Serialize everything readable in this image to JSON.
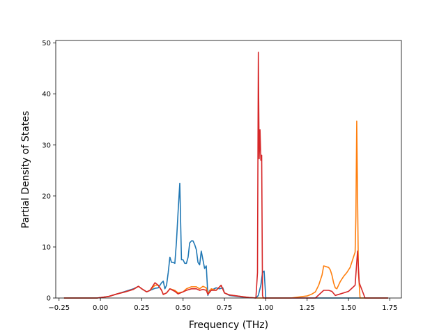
{
  "chart_data": {
    "type": "line",
    "title": "",
    "xlabel": "Frequency (THz)",
    "ylabel": "Partial Density of States",
    "xlim": [
      -0.27,
      1.82
    ],
    "ylim": [
      0,
      50.5
    ],
    "grid": false,
    "x_ticks": [
      -0.25,
      0.0,
      0.25,
      0.5,
      0.75,
      1.0,
      1.25,
      1.5,
      1.75
    ],
    "x_tick_labels": [
      "−0.25",
      "0.00",
      "0.25",
      "0.50",
      "0.75",
      "1.00",
      "1.25",
      "1.50",
      "1.75"
    ],
    "y_ticks": [
      0,
      10,
      20,
      30,
      40,
      50
    ],
    "y_tick_labels": [
      "0",
      "10",
      "20",
      "30",
      "40",
      "50"
    ],
    "series": [
      {
        "color": "#1f77b4",
        "x": [
          -0.22,
          -0.02,
          0.05,
          0.1,
          0.15,
          0.2,
          0.23,
          0.25,
          0.28,
          0.3,
          0.33,
          0.35,
          0.37,
          0.38,
          0.39,
          0.4,
          0.41,
          0.42,
          0.43,
          0.44,
          0.45,
          0.46,
          0.47,
          0.48,
          0.49,
          0.5,
          0.51,
          0.52,
          0.53,
          0.54,
          0.55,
          0.56,
          0.57,
          0.58,
          0.59,
          0.6,
          0.61,
          0.62,
          0.63,
          0.64,
          0.65,
          0.66,
          0.67,
          0.7,
          0.72,
          0.74,
          0.75,
          0.78,
          0.85,
          0.9,
          0.94,
          0.955,
          0.97,
          0.98,
          0.99,
          1.0,
          1.1,
          1.3,
          1.45,
          1.55,
          1.57,
          1.74
        ],
        "y": [
          0,
          0,
          0.3,
          0.8,
          1.3,
          1.8,
          2.3,
          1.8,
          1.2,
          1.5,
          1.9,
          2.0,
          3.0,
          3.3,
          1.8,
          2.5,
          5.0,
          8.0,
          7.0,
          7.0,
          6.8,
          11.0,
          17.0,
          22.5,
          7.5,
          7.5,
          6.8,
          6.8,
          8.0,
          10.8,
          11.2,
          11.2,
          10.5,
          9.5,
          7.0,
          6.5,
          9.2,
          7.5,
          5.8,
          6.3,
          0.5,
          1.5,
          1.5,
          2.0,
          1.8,
          2.0,
          1.0,
          0.5,
          0.2,
          0.1,
          0,
          0.5,
          2.5,
          5.0,
          5.3,
          0,
          0,
          0,
          0,
          0,
          0,
          0
        ]
      },
      {
        "color": "#ff7f0e",
        "x": [
          -0.22,
          -0.02,
          0.05,
          0.1,
          0.15,
          0.2,
          0.23,
          0.25,
          0.28,
          0.3,
          0.33,
          0.35,
          0.37,
          0.38,
          0.4,
          0.42,
          0.45,
          0.47,
          0.5,
          0.52,
          0.55,
          0.58,
          0.6,
          0.62,
          0.64,
          0.65,
          0.67,
          0.7,
          0.73,
          0.75,
          0.78,
          0.85,
          0.9,
          0.95,
          0.99,
          1.15,
          1.2,
          1.25,
          1.28,
          1.3,
          1.32,
          1.34,
          1.35,
          1.36,
          1.38,
          1.39,
          1.4,
          1.41,
          1.42,
          1.43,
          1.44,
          1.45,
          1.47,
          1.49,
          1.51,
          1.52,
          1.53,
          1.54,
          1.545,
          1.55,
          1.555,
          1.56,
          1.57,
          1.62,
          1.74
        ],
        "y": [
          0,
          0,
          0.3,
          0.8,
          1.2,
          1.7,
          2.3,
          1.8,
          1.2,
          1.5,
          2.5,
          2.5,
          1.5,
          0.7,
          1.0,
          1.8,
          1.5,
          1.0,
          1.2,
          1.8,
          2.2,
          2.2,
          1.8,
          2.3,
          2.0,
          0.8,
          1.8,
          1.5,
          2.5,
          1.0,
          0.6,
          0.3,
          0.1,
          0,
          0,
          0,
          0.2,
          0.4,
          0.8,
          1.2,
          2.5,
          4.5,
          6.3,
          6.2,
          6.0,
          5.5,
          4.5,
          3.0,
          2.0,
          1.8,
          2.5,
          3.2,
          4.2,
          5.0,
          6.0,
          7.0,
          8.0,
          9.0,
          16.0,
          34.7,
          20.0,
          5.0,
          0,
          0,
          0
        ]
      },
      {
        "color": "#d62728",
        "x": [
          -0.22,
          -0.02,
          0.05,
          0.1,
          0.15,
          0.2,
          0.23,
          0.25,
          0.28,
          0.3,
          0.33,
          0.35,
          0.37,
          0.38,
          0.4,
          0.42,
          0.45,
          0.47,
          0.5,
          0.52,
          0.55,
          0.58,
          0.6,
          0.62,
          0.64,
          0.65,
          0.67,
          0.7,
          0.73,
          0.75,
          0.78,
          0.85,
          0.9,
          0.94,
          0.95,
          0.955,
          0.96,
          0.965,
          0.97,
          0.975,
          0.98,
          0.985,
          1.0,
          1.1,
          1.3,
          1.35,
          1.38,
          1.4,
          1.42,
          1.45,
          1.5,
          1.54,
          1.55,
          1.555,
          1.565,
          1.6,
          1.74
        ],
        "y": [
          0,
          0,
          0.3,
          0.8,
          1.2,
          1.7,
          2.3,
          1.8,
          1.2,
          1.5,
          3.0,
          2.5,
          1.5,
          0.7,
          1.0,
          1.8,
          1.3,
          0.8,
          1.2,
          1.5,
          1.8,
          1.8,
          1.5,
          1.7,
          1.5,
          0.7,
          1.5,
          1.5,
          2.5,
          1.0,
          0.6,
          0.3,
          0.1,
          0,
          5.0,
          48.2,
          27.3,
          33.0,
          27.0,
          28.0,
          0.5,
          0,
          0,
          0,
          0,
          1.5,
          1.5,
          1.3,
          0.5,
          0.8,
          1.3,
          2.5,
          7.0,
          9.2,
          3.0,
          0,
          0
        ]
      }
    ]
  }
}
